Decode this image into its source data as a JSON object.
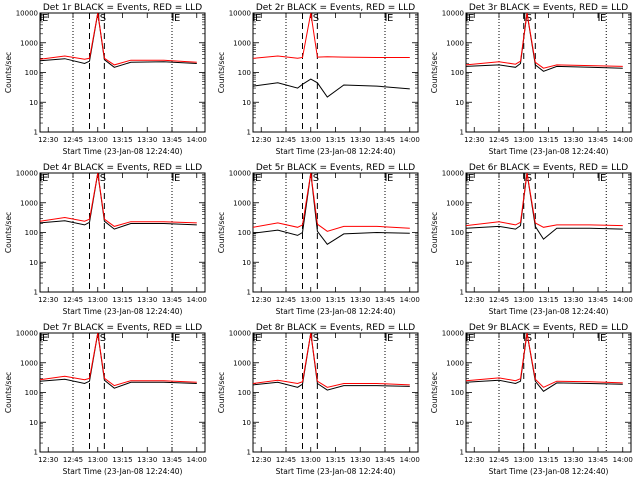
{
  "chart_data": [
    {
      "type": "line",
      "title": "Det 1r BLACK = Events, RED = LLD",
      "xlabel": "Start Time (23-Jan-08 12:24:40)",
      "ylabel": "Counts/sec",
      "yscale": "log",
      "ylim": [
        1,
        10000
      ],
      "xlim": [
        "12:25",
        "14:05"
      ],
      "x_ticks": [
        "12:30",
        "12:45",
        "13:00",
        "13:15",
        "13:30",
        "13:45",
        "14:00"
      ],
      "y_ticks": [
        "1",
        "10",
        "100",
        "1000",
        "10000"
      ],
      "markers": [
        {
          "label": "E",
          "x": "12:25"
        },
        {
          "label": "S",
          "x": "13:00"
        },
        {
          "label": "E",
          "x": "13:45"
        }
      ],
      "dotted_lines": [
        "12:45",
        "13:45"
      ],
      "dashed_lines": [
        "12:55",
        "13:04"
      ],
      "x": [
        "12:25",
        "12:40",
        "12:52",
        "12:55",
        "13:00",
        "13:04",
        "13:10",
        "13:20",
        "13:40",
        "14:00"
      ],
      "series": [
        {
          "name": "BLACK = Events",
          "color": "#000000",
          "values": [
            250,
            290,
            200,
            240,
            10000,
            270,
            150,
            220,
            230,
            200
          ]
        },
        {
          "name": "RED = LLD",
          "color": "#ff0000",
          "values": [
            280,
            360,
            280,
            300,
            10000,
            300,
            180,
            260,
            260,
            220
          ]
        }
      ]
    },
    {
      "type": "line",
      "title": "Det 2r BLACK = Events, RED = LLD",
      "xlabel": "Start Time (23-Jan-08 12:24:40)",
      "ylabel": "Counts/sec",
      "yscale": "log",
      "ylim": [
        1,
        10000
      ],
      "xlim": [
        "12:25",
        "14:05"
      ],
      "x_ticks": [
        "12:30",
        "12:45",
        "13:00",
        "13:15",
        "13:30",
        "13:45",
        "14:00"
      ],
      "y_ticks": [
        "1",
        "10",
        "100",
        "1000",
        "10000"
      ],
      "markers": [
        {
          "label": "E",
          "x": "12:25"
        },
        {
          "label": "S",
          "x": "13:00"
        },
        {
          "label": "E",
          "x": "13:45"
        }
      ],
      "dotted_lines": [
        "12:45",
        "13:45"
      ],
      "dashed_lines": [
        "12:55",
        "13:04"
      ],
      "x": [
        "12:25",
        "12:40",
        "12:52",
        "12:55",
        "13:00",
        "13:04",
        "13:10",
        "13:20",
        "13:40",
        "14:00"
      ],
      "series": [
        {
          "name": "BLACK = Events",
          "color": "#000000",
          "values": [
            35,
            45,
            30,
            40,
            60,
            45,
            15,
            38,
            35,
            28
          ]
        },
        {
          "name": "RED = LLD",
          "color": "#ff0000",
          "values": [
            300,
            360,
            300,
            320,
            10000,
            330,
            340,
            330,
            320,
            320
          ]
        }
      ]
    },
    {
      "type": "line",
      "title": "Det 3r BLACK = Events, RED = LLD",
      "xlabel": "Start Time (23-Jan-08 12:24:40)",
      "ylabel": "Counts/sec",
      "yscale": "log",
      "ylim": [
        1,
        10000
      ],
      "xlim": [
        "12:25",
        "14:05"
      ],
      "x_ticks": [
        "12:30",
        "12:45",
        "13:00",
        "13:15",
        "13:30",
        "13:45",
        "14:00"
      ],
      "y_ticks": [
        "1",
        "10",
        "100",
        "1000",
        "10000"
      ],
      "markers": [
        {
          "label": "E",
          "x": "12:25"
        },
        {
          "label": "S",
          "x": "13:00"
        },
        {
          "label": "E",
          "x": "13:45"
        }
      ],
      "dotted_lines": [
        "12:45",
        "13:50"
      ],
      "dashed_lines": [
        "13:00",
        "13:07"
      ],
      "x": [
        "12:25",
        "12:45",
        "12:55",
        "12:58",
        "13:02",
        "13:07",
        "13:12",
        "13:20",
        "13:40",
        "14:00"
      ],
      "series": [
        {
          "name": "BLACK = Events",
          "color": "#000000",
          "values": [
            160,
            180,
            150,
            200,
            10000,
            180,
            110,
            160,
            150,
            140
          ]
        },
        {
          "name": "RED = LLD",
          "color": "#ff0000",
          "values": [
            180,
            230,
            190,
            240,
            10000,
            220,
            140,
            180,
            170,
            160
          ]
        }
      ]
    },
    {
      "type": "line",
      "title": "Det 4r BLACK = Events, RED = LLD",
      "xlabel": "Start Time (23-Jan-08 12:24:40)",
      "ylabel": "Counts/sec",
      "yscale": "log",
      "ylim": [
        1,
        10000
      ],
      "xlim": [
        "12:25",
        "14:05"
      ],
      "x_ticks": [
        "12:30",
        "12:45",
        "13:00",
        "13:15",
        "13:30",
        "13:45",
        "14:00"
      ],
      "y_ticks": [
        "1",
        "10",
        "100",
        "1000",
        "10000"
      ],
      "markers": [
        {
          "label": "E",
          "x": "12:25"
        },
        {
          "label": "S",
          "x": "13:00"
        },
        {
          "label": "E",
          "x": "13:45"
        }
      ],
      "dotted_lines": [
        "12:45",
        "13:45"
      ],
      "dashed_lines": [
        "12:55",
        "13:04"
      ],
      "x": [
        "12:25",
        "12:40",
        "12:52",
        "12:55",
        "13:00",
        "13:04",
        "13:10",
        "13:20",
        "13:40",
        "14:00"
      ],
      "series": [
        {
          "name": "BLACK = Events",
          "color": "#000000",
          "values": [
            210,
            250,
            180,
            220,
            10000,
            240,
            130,
            200,
            200,
            180
          ]
        },
        {
          "name": "RED = LLD",
          "color": "#ff0000",
          "values": [
            240,
            320,
            240,
            280,
            10000,
            280,
            160,
            230,
            230,
            210
          ]
        }
      ]
    },
    {
      "type": "line",
      "title": "Det 5r BLACK = Events, RED = LLD",
      "xlabel": "Start Time (23-Jan-08 12:24:40)",
      "ylabel": "Counts/sec",
      "yscale": "log",
      "ylim": [
        1,
        10000
      ],
      "xlim": [
        "12:25",
        "14:05"
      ],
      "x_ticks": [
        "12:30",
        "12:45",
        "13:00",
        "13:15",
        "13:30",
        "13:45",
        "14:00"
      ],
      "y_ticks": [
        "1",
        "10",
        "100",
        "1000",
        "10000"
      ],
      "markers": [
        {
          "label": "E",
          "x": "12:25"
        },
        {
          "label": "S",
          "x": "13:00"
        },
        {
          "label": "E",
          "x": "13:45"
        }
      ],
      "dotted_lines": [
        "12:45",
        "13:45"
      ],
      "dashed_lines": [
        "12:55",
        "13:04"
      ],
      "x": [
        "12:25",
        "12:40",
        "12:52",
        "12:55",
        "13:00",
        "13:04",
        "13:10",
        "13:20",
        "13:40",
        "14:00"
      ],
      "series": [
        {
          "name": "BLACK = Events",
          "color": "#000000",
          "values": [
            95,
            120,
            80,
            100,
            10000,
            110,
            40,
            90,
            100,
            95
          ]
        },
        {
          "name": "RED = LLD",
          "color": "#ff0000",
          "values": [
            150,
            210,
            150,
            180,
            10000,
            190,
            110,
            160,
            160,
            140
          ]
        }
      ]
    },
    {
      "type": "line",
      "title": "Det 6r BLACK = Events, RED = LLD",
      "xlabel": "Start Time (23-Jan-08 12:24:40)",
      "ylabel": "Counts/sec",
      "yscale": "log",
      "ylim": [
        1,
        10000
      ],
      "xlim": [
        "12:25",
        "14:05"
      ],
      "x_ticks": [
        "12:30",
        "12:45",
        "13:00",
        "13:15",
        "13:30",
        "13:45",
        "14:00"
      ],
      "y_ticks": [
        "1",
        "10",
        "100",
        "1000",
        "10000"
      ],
      "markers": [
        {
          "label": "E",
          "x": "12:25"
        },
        {
          "label": "S",
          "x": "13:00"
        },
        {
          "label": "E",
          "x": "13:45"
        }
      ],
      "dotted_lines": [
        "12:45",
        "13:50"
      ],
      "dashed_lines": [
        "13:00",
        "13:07"
      ],
      "x": [
        "12:25",
        "12:45",
        "12:55",
        "12:58",
        "13:02",
        "13:07",
        "13:12",
        "13:20",
        "13:40",
        "14:00"
      ],
      "series": [
        {
          "name": "BLACK = Events",
          "color": "#000000",
          "values": [
            140,
            160,
            130,
            170,
            10000,
            160,
            60,
            140,
            140,
            130
          ]
        },
        {
          "name": "RED = LLD",
          "color": "#ff0000",
          "values": [
            170,
            230,
            180,
            220,
            10000,
            210,
            150,
            180,
            180,
            170
          ]
        }
      ]
    },
    {
      "type": "line",
      "title": "Det 7r BLACK = Events, RED = LLD",
      "xlabel": "Start Time (23-Jan-08 12:24:40)",
      "ylabel": "Counts/sec",
      "yscale": "log",
      "ylim": [
        1,
        10000
      ],
      "xlim": [
        "12:25",
        "14:05"
      ],
      "x_ticks": [
        "12:30",
        "12:45",
        "13:00",
        "13:15",
        "13:30",
        "13:45",
        "14:00"
      ],
      "y_ticks": [
        "1",
        "10",
        "100",
        "1000",
        "10000"
      ],
      "markers": [
        {
          "label": "E",
          "x": "12:25"
        },
        {
          "label": "S",
          "x": "13:00"
        },
        {
          "label": "E",
          "x": "13:45"
        }
      ],
      "dotted_lines": [
        "12:45",
        "13:45"
      ],
      "dashed_lines": [
        "12:55",
        "13:04"
      ],
      "x": [
        "12:25",
        "12:40",
        "12:52",
        "12:55",
        "13:00",
        "13:04",
        "13:10",
        "13:20",
        "13:40",
        "14:00"
      ],
      "series": [
        {
          "name": "BLACK = Events",
          "color": "#000000",
          "values": [
            240,
            280,
            200,
            240,
            10000,
            260,
            140,
            220,
            220,
            200
          ]
        },
        {
          "name": "RED = LLD",
          "color": "#ff0000",
          "values": [
            270,
            350,
            270,
            300,
            10000,
            300,
            170,
            250,
            250,
            220
          ]
        }
      ]
    },
    {
      "type": "line",
      "title": "Det 8r BLACK = Events, RED = LLD",
      "xlabel": "Start Time (23-Jan-08 12:24:40)",
      "ylabel": "Counts/sec",
      "yscale": "log",
      "ylim": [
        1,
        10000
      ],
      "xlim": [
        "12:25",
        "14:05"
      ],
      "x_ticks": [
        "12:30",
        "12:45",
        "13:00",
        "13:15",
        "13:30",
        "13:45",
        "14:00"
      ],
      "y_ticks": [
        "1",
        "10",
        "100",
        "1000",
        "10000"
      ],
      "markers": [
        {
          "label": "E",
          "x": "12:25"
        },
        {
          "label": "S",
          "x": "13:00"
        },
        {
          "label": "E",
          "x": "13:45"
        }
      ],
      "dotted_lines": [
        "12:45",
        "13:45"
      ],
      "dashed_lines": [
        "12:55",
        "13:04"
      ],
      "x": [
        "12:25",
        "12:40",
        "12:52",
        "12:55",
        "13:00",
        "13:04",
        "13:10",
        "13:20",
        "13:40",
        "14:00"
      ],
      "series": [
        {
          "name": "BLACK = Events",
          "color": "#000000",
          "values": [
            180,
            220,
            150,
            190,
            10000,
            200,
            120,
            170,
            170,
            160
          ]
        },
        {
          "name": "RED = LLD",
          "color": "#ff0000",
          "values": [
            200,
            260,
            200,
            230,
            10000,
            240,
            150,
            200,
            200,
            180
          ]
        }
      ]
    },
    {
      "type": "line",
      "title": "Det 9r BLACK = Events, RED = LLD",
      "xlabel": "Start Time (23-Jan-08 12:24:40)",
      "ylabel": "Counts/sec",
      "yscale": "log",
      "ylim": [
        1,
        10000
      ],
      "xlim": [
        "12:25",
        "14:05"
      ],
      "x_ticks": [
        "12:30",
        "12:45",
        "13:00",
        "13:15",
        "13:30",
        "13:45",
        "14:00"
      ],
      "y_ticks": [
        "1",
        "10",
        "100",
        "1000",
        "10000"
      ],
      "markers": [
        {
          "label": "E",
          "x": "12:25"
        },
        {
          "label": "S",
          "x": "13:00"
        },
        {
          "label": "E",
          "x": "13:45"
        }
      ],
      "dotted_lines": [
        "12:45",
        "13:50"
      ],
      "dashed_lines": [
        "13:00",
        "13:07"
      ],
      "x": [
        "12:25",
        "12:45",
        "12:55",
        "12:58",
        "13:02",
        "13:07",
        "13:12",
        "13:20",
        "13:40",
        "14:00"
      ],
      "series": [
        {
          "name": "BLACK = Events",
          "color": "#000000",
          "values": [
            220,
            260,
            200,
            240,
            10000,
            240,
            110,
            210,
            200,
            190
          ]
        },
        {
          "name": "RED = LLD",
          "color": "#ff0000",
          "values": [
            250,
            310,
            250,
            290,
            10000,
            280,
            150,
            240,
            230,
            210
          ]
        }
      ]
    }
  ]
}
